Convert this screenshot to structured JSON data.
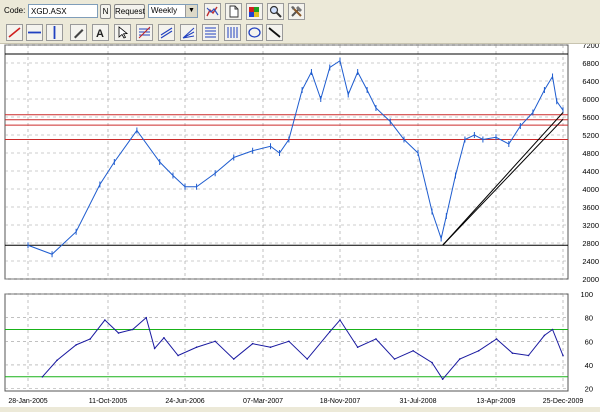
{
  "toolbar": {
    "code_label": "Code:",
    "code_value": "XGD.ASX",
    "n_label": "N",
    "request_label": "Request",
    "period_value": "Weekly",
    "icons": [
      "chart-style-icon",
      "new-page-icon",
      "color-palette-icon",
      "zoom-icon",
      "tools-icon"
    ]
  },
  "drawing_tools": [
    "red-line-icon",
    "horizontal-line-icon",
    "vertical-line-icon",
    "pen-icon",
    "text-icon",
    "pointer-icon",
    "fibonacci-icon",
    "channel-icon",
    "fan-icon",
    "retracement-icon",
    "cycle-lines-icon",
    "ellipse-icon",
    "trend-line-icon"
  ],
  "colors": {
    "price_series": "#1e5ccf",
    "indicator_series": "#1a1aa0",
    "support_resistance": "#cc2b2b",
    "trendline": "#000000",
    "oscillator_band": "#19b219"
  },
  "chart_data": [
    {
      "type": "line",
      "title": "",
      "symbol": "XGD.ASX",
      "period": "Weekly",
      "x_tick_labels": [
        "28-Jan-2005",
        "11-Oct-2005",
        "24-Jun-2006",
        "07-Mar-2007",
        "18-Nov-2007",
        "31-Jul-2008",
        "13-Apr-2009",
        "25-Dec-2009"
      ],
      "y_ticks": [
        2000,
        2400,
        2800,
        3200,
        3600,
        4000,
        4400,
        4800,
        5200,
        5600,
        6000,
        6400,
        6800,
        7200
      ],
      "ylim": [
        2000,
        7200
      ],
      "x": [
        "2005-01-28",
        "2005-04-15",
        "2005-07-01",
        "2005-09-15",
        "2005-11-01",
        "2006-01-15",
        "2006-04-01",
        "2006-05-15",
        "2006-06-24",
        "2006-08-01",
        "2006-10-01",
        "2006-12-01",
        "2007-02-01",
        "2007-04-01",
        "2007-05-01",
        "2007-06-01",
        "2007-07-15",
        "2007-08-15",
        "2007-09-15",
        "2007-10-15",
        "2007-11-18",
        "2007-12-15",
        "2008-01-15",
        "2008-02-15",
        "2008-03-15",
        "2008-05-01",
        "2008-06-15",
        "2008-07-31",
        "2008-09-15",
        "2008-10-15",
        "2008-11-01",
        "2008-12-01",
        "2009-01-01",
        "2009-02-01",
        "2009-03-01",
        "2009-04-13",
        "2009-06-01",
        "2009-07-15",
        "2009-09-01",
        "2009-10-15",
        "2009-11-15",
        "2009-12-01",
        "2009-12-25"
      ],
      "y": [
        2750,
        2550,
        3050,
        4100,
        4600,
        5300,
        4600,
        4300,
        4050,
        4050,
        4350,
        4700,
        4850,
        4950,
        4800,
        5100,
        6200,
        6600,
        6000,
        6700,
        6850,
        6100,
        6600,
        6200,
        5800,
        5500,
        5100,
        4800,
        3500,
        2900,
        3400,
        4300,
        5100,
        5200,
        5100,
        5150,
        5000,
        5400,
        5700,
        6200,
        6500,
        5950,
        5750
      ],
      "horizontal_lines": [
        {
          "value": 7000,
          "color": "#000000"
        },
        {
          "value": 5650,
          "color": "#cc2b2b"
        },
        {
          "value": 5540,
          "color": "#cc2b2b"
        },
        {
          "value": 5420,
          "color": "#cc2b2b"
        },
        {
          "value": 5100,
          "color": "#cc2b2b"
        },
        {
          "value": 2750,
          "color": "#000000"
        }
      ],
      "trendlines": [
        {
          "from": [
            "2008-10-20",
            2750
          ],
          "to": [
            "2009-12-25",
            5550
          ]
        },
        {
          "from": [
            "2008-10-20",
            2750
          ],
          "to": [
            "2009-12-25",
            5700
          ]
        }
      ],
      "grid": true
    },
    {
      "type": "line",
      "title": "",
      "y_ticks": [
        20,
        40,
        60,
        80,
        100
      ],
      "ylim": [
        18,
        100
      ],
      "bands": [
        {
          "value": 70,
          "color": "#19b219"
        },
        {
          "value": 30,
          "color": "#19b219"
        }
      ],
      "x": [
        "2005-03-15",
        "2005-05-01",
        "2005-07-01",
        "2005-08-15",
        "2005-10-01",
        "2005-11-15",
        "2006-01-01",
        "2006-02-15",
        "2006-03-15",
        "2006-04-15",
        "2006-06-01",
        "2006-08-01",
        "2006-10-01",
        "2006-12-01",
        "2007-02-01",
        "2007-04-01",
        "2007-06-01",
        "2007-08-01",
        "2007-10-15",
        "2007-11-18",
        "2008-01-15",
        "2008-03-15",
        "2008-05-15",
        "2008-07-15",
        "2008-09-15",
        "2008-10-20",
        "2008-12-15",
        "2009-02-15",
        "2009-04-15",
        "2009-06-15",
        "2009-08-15",
        "2009-10-15",
        "2009-11-15",
        "2009-12-25"
      ],
      "y": [
        30,
        44,
        57,
        62,
        78,
        67,
        70,
        80,
        54,
        63,
        48,
        55,
        60,
        45,
        58,
        55,
        60,
        45,
        68,
        78,
        55,
        62,
        45,
        52,
        42,
        28,
        45,
        52,
        62,
        50,
        48,
        65,
        70,
        48
      ],
      "grid": true
    }
  ]
}
